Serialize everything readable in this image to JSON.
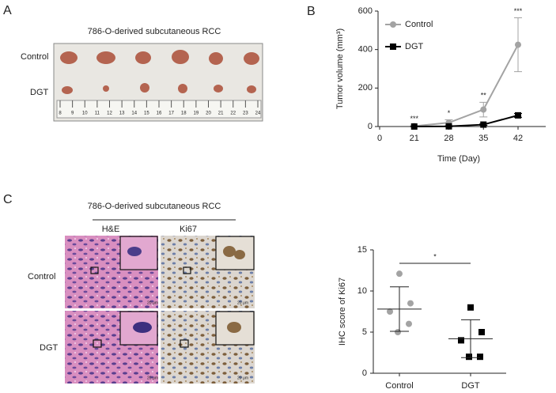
{
  "panel_a": {
    "letter": "A",
    "title": "786-O-derived subcutaneous RCC",
    "rows": [
      "Control",
      "DGT"
    ],
    "ruler_labels": [
      "8",
      "9",
      "10",
      "11",
      "12",
      "13",
      "14",
      "15",
      "16",
      "17",
      "18",
      "19",
      "20",
      "21",
      "22",
      "23",
      "24"
    ]
  },
  "panel_b": {
    "letter": "B"
  },
  "panel_c": {
    "letter": "C",
    "title": "786-O-derived subcutaneous RCC",
    "columns": [
      "H&E",
      "Ki67"
    ],
    "rows": [
      "Control",
      "DGT"
    ],
    "scale_bar_label": "20 μm"
  },
  "chart_data": [
    {
      "type": "line",
      "categories": [
        "0",
        "21",
        "28",
        "35",
        "42"
      ],
      "x_label": "Time (Day)",
      "y_label": "Tumor volume (mm³)",
      "ylim": [
        0,
        600
      ],
      "yticks": [
        0,
        200,
        400,
        600
      ],
      "legend": "upper-left",
      "annotations": [
        null,
        "***",
        "*",
        "**",
        "***"
      ],
      "series": [
        {
          "name": "Control",
          "color": "#a3a3a3",
          "marker": "circle",
          "values": [
            null,
            2,
            20,
            88,
            425
          ],
          "errors": [
            null,
            3,
            15,
            38,
            140
          ]
        },
        {
          "name": "DGT",
          "color": "#000000",
          "marker": "square",
          "values": [
            null,
            0,
            1,
            10,
            58
          ],
          "errors": [
            null,
            1,
            2,
            4,
            10
          ]
        }
      ]
    },
    {
      "type": "dotplot",
      "y_label": "IHC score of Ki67",
      "ylim": [
        0,
        15
      ],
      "yticks": [
        0,
        5,
        10,
        15
      ],
      "annotation": "*",
      "groups": [
        {
          "name": "Control",
          "color": "#a3a3a3",
          "marker": "circle",
          "values": [
            12.1,
            8.5,
            7.5,
            6.0,
            5.0
          ],
          "mean": 7.8,
          "sd": 2.7
        },
        {
          "name": "DGT",
          "color": "#000000",
          "marker": "square",
          "values": [
            8.0,
            5.0,
            4.0,
            2.0,
            2.0
          ],
          "mean": 4.2,
          "sd": 2.3
        }
      ]
    }
  ]
}
